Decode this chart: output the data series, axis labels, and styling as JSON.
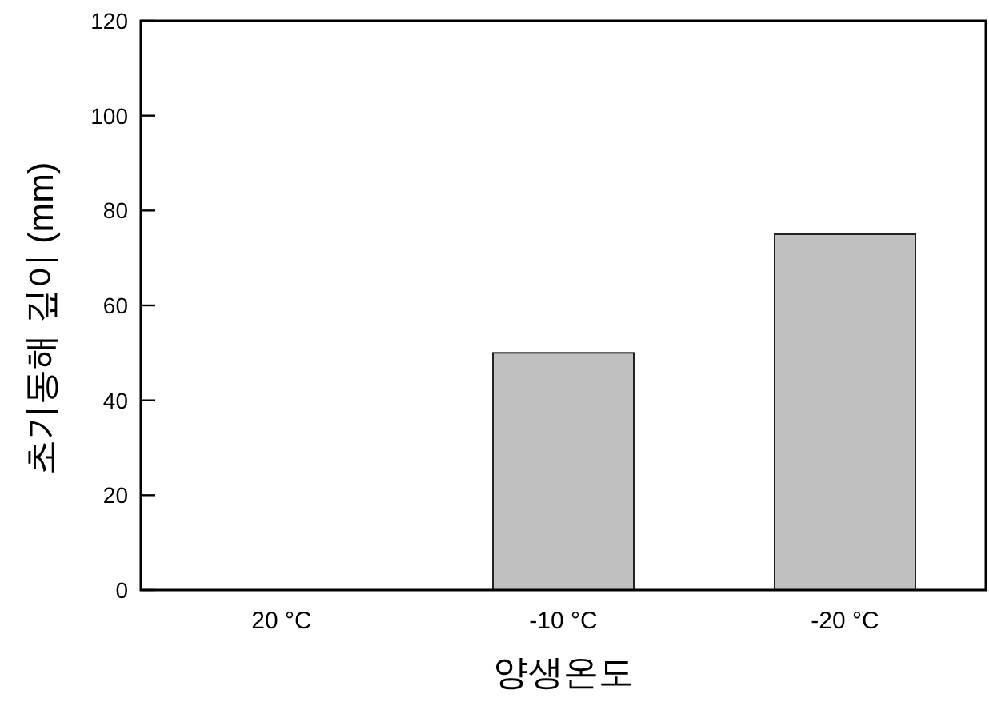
{
  "chart_data": {
    "type": "bar",
    "xlabel": "양생온도",
    "ylabel": "초기동해 깊이 (mm)",
    "categories": [
      "20 °C",
      "-10 °C",
      "-20 °C"
    ],
    "values": [
      0,
      50,
      75
    ],
    "color": "#c0c0c0",
    "ylim": [
      0,
      120
    ],
    "yticks": [
      0,
      20,
      40,
      60,
      80,
      100,
      120
    ],
    "grid": false
  }
}
